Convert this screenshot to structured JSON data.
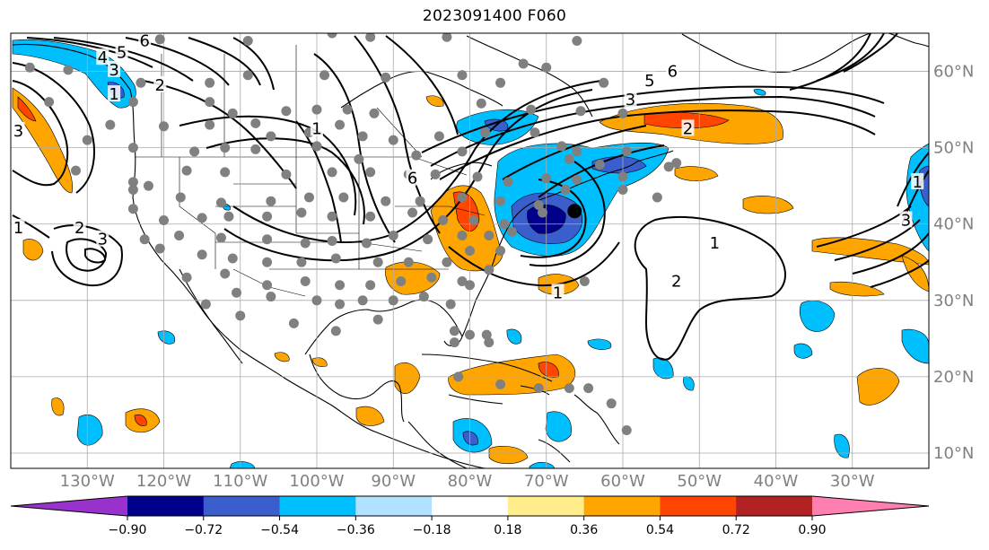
{
  "title": "2023091400 F060",
  "map": {
    "lon_range": [
      -140,
      -20
    ],
    "lat_range": [
      8,
      65
    ],
    "lon_ticks": [
      {
        "value": -130,
        "label": "130°W"
      },
      {
        "value": -120,
        "label": "120°W"
      },
      {
        "value": -110,
        "label": "110°W"
      },
      {
        "value": -100,
        "label": "100°W"
      },
      {
        "value": -90,
        "label": "90°W"
      },
      {
        "value": -80,
        "label": "80°W"
      },
      {
        "value": -70,
        "label": "70°W"
      },
      {
        "value": -60,
        "label": "60°W"
      },
      {
        "value": -50,
        "label": "50°W"
      },
      {
        "value": -40,
        "label": "40°W"
      },
      {
        "value": -30,
        "label": "30°W"
      }
    ],
    "lat_ticks": [
      {
        "value": 60,
        "label": "60°N"
      },
      {
        "value": 50,
        "label": "50°N"
      },
      {
        "value": 40,
        "label": "40°N"
      },
      {
        "value": 30,
        "label": "30°N"
      },
      {
        "value": 20,
        "label": "20°N"
      },
      {
        "value": 10,
        "label": "10°N"
      }
    ],
    "grid": true,
    "contour_labels": [
      {
        "text": "6",
        "lon": -122.5,
        "lat": 64.0
      },
      {
        "text": "5",
        "lon": -125.5,
        "lat": 62.5
      },
      {
        "text": "4",
        "lon": -128.0,
        "lat": 61.8
      },
      {
        "text": "3",
        "lon": -126.5,
        "lat": 60.2
      },
      {
        "text": "2",
        "lon": -120.5,
        "lat": 58.2
      },
      {
        "text": "1",
        "lon": -126.5,
        "lat": 57.0
      },
      {
        "text": "3",
        "lon": -139.0,
        "lat": 52.2
      },
      {
        "text": "1",
        "lon": -100.0,
        "lat": 52.5
      },
      {
        "text": "6",
        "lon": -87.5,
        "lat": 46.0
      },
      {
        "text": "2",
        "lon": -131.0,
        "lat": 39.5
      },
      {
        "text": "3",
        "lon": -128.0,
        "lat": 38.0
      },
      {
        "text": "1",
        "lon": -139.0,
        "lat": 39.5
      },
      {
        "text": "6",
        "lon": -53.5,
        "lat": 60.0
      },
      {
        "text": "5",
        "lon": -56.5,
        "lat": 58.8
      },
      {
        "text": "3",
        "lon": -59.0,
        "lat": 56.3
      },
      {
        "text": "2",
        "lon": -51.5,
        "lat": 52.5
      },
      {
        "text": "1",
        "lon": -48.0,
        "lat": 37.5
      },
      {
        "text": "2",
        "lon": -53.0,
        "lat": 32.5
      },
      {
        "text": "1",
        "lon": -68.5,
        "lat": 31.0
      },
      {
        "text": "3",
        "lon": -23.0,
        "lat": 40.5
      },
      {
        "text": "1",
        "lon": -21.5,
        "lat": 45.5
      }
    ],
    "station_color": "#808080",
    "stations": [
      [
        -120.5,
        64.2
      ],
      [
        -109,
        64
      ],
      [
        -98,
        65
      ],
      [
        -93,
        64.5
      ],
      [
        -83,
        64.5
      ],
      [
        -73,
        61
      ],
      [
        -66,
        64
      ],
      [
        -137.5,
        60.5
      ],
      [
        -132.5,
        60.2
      ],
      [
        -123,
        58.5
      ],
      [
        -114,
        58.5
      ],
      [
        -109,
        59.5
      ],
      [
        -99,
        59.5
      ],
      [
        -91,
        59.2
      ],
      [
        -81,
        59.5
      ],
      [
        -76,
        58.5
      ],
      [
        -70,
        60.5
      ],
      [
        -62.5,
        58.5
      ],
      [
        -135,
        56
      ],
      [
        -124,
        56
      ],
      [
        -114,
        56
      ],
      [
        -111,
        54.5
      ],
      [
        -104,
        54.8
      ],
      [
        -100,
        55
      ],
      [
        -96,
        55
      ],
      [
        -92.5,
        54.5
      ],
      [
        -78.5,
        55.8
      ],
      [
        -72,
        55
      ],
      [
        -60,
        54.5
      ],
      [
        -65.5,
        54.8
      ],
      [
        -127,
        53
      ],
      [
        -120,
        52.8
      ],
      [
        -114,
        53
      ],
      [
        -108,
        53.2
      ],
      [
        -106,
        51.5
      ],
      [
        -101,
        52
      ],
      [
        -97,
        53
      ],
      [
        -94,
        51.5
      ],
      [
        -90,
        51
      ],
      [
        -84,
        51.5
      ],
      [
        -78,
        52
      ],
      [
        -71.5,
        52
      ],
      [
        -130,
        51
      ],
      [
        -124,
        50
      ],
      [
        -116,
        49.5
      ],
      [
        -112,
        50
      ],
      [
        -108,
        49.8
      ],
      [
        -100,
        50.2
      ],
      [
        -94.5,
        48.5
      ],
      [
        -87,
        49
      ],
      [
        -81,
        49.5
      ],
      [
        -68,
        50.2
      ],
      [
        -66,
        49.5
      ],
      [
        -59.5,
        49.5
      ],
      [
        -53,
        48
      ],
      [
        -131.5,
        47
      ],
      [
        -124,
        45.5
      ],
      [
        -122,
        45
      ],
      [
        -117,
        47
      ],
      [
        -112,
        46.8
      ],
      [
        -104,
        46.5
      ],
      [
        -98,
        46.8
      ],
      [
        -93,
        46.8
      ],
      [
        -88,
        46.5
      ],
      [
        -84.5,
        46.5
      ],
      [
        -79,
        46.2
      ],
      [
        -75,
        45.5
      ],
      [
        -70,
        46
      ],
      [
        -66,
        45.8
      ],
      [
        -60,
        46.2
      ],
      [
        -54,
        47.5
      ],
      [
        -63,
        47.8
      ],
      [
        -67,
        48.5
      ],
      [
        -124,
        44.5
      ],
      [
        -117.8,
        43.5
      ],
      [
        -112.5,
        42.8
      ],
      [
        -106,
        43
      ],
      [
        -101,
        43.5
      ],
      [
        -96.5,
        43.5
      ],
      [
        -91,
        43
      ],
      [
        -86.5,
        43
      ],
      [
        -81,
        43.5
      ],
      [
        -76,
        43
      ],
      [
        -71,
        42.5
      ],
      [
        -67.5,
        44.5
      ],
      [
        -60,
        44.5
      ],
      [
        -55.5,
        43.5
      ],
      [
        -124,
        42
      ],
      [
        -120,
        40.5
      ],
      [
        -115,
        40.8
      ],
      [
        -111.5,
        41
      ],
      [
        -106.5,
        41
      ],
      [
        -102,
        41.5
      ],
      [
        -98,
        41
      ],
      [
        -93,
        41
      ],
      [
        -87.5,
        41.5
      ],
      [
        -83.5,
        40.5
      ],
      [
        -79.5,
        40.5
      ],
      [
        -75.5,
        40
      ],
      [
        -70.5,
        41.5
      ],
      [
        -122.5,
        38
      ],
      [
        -118,
        38.5
      ],
      [
        -112.5,
        38.2
      ],
      [
        -106.5,
        38
      ],
      [
        -101.5,
        37.5
      ],
      [
        -98,
        37.8
      ],
      [
        -93.5,
        37.5
      ],
      [
        -90,
        38.5
      ],
      [
        -85.5,
        38
      ],
      [
        -81,
        38.5
      ],
      [
        -77.5,
        38.5
      ],
      [
        -74.5,
        39
      ],
      [
        -120.5,
        36.8
      ],
      [
        -115,
        36
      ],
      [
        -111,
        35.5
      ],
      [
        -106.5,
        35
      ],
      [
        -102,
        35
      ],
      [
        -97.5,
        35.5
      ],
      [
        -92,
        35
      ],
      [
        -88,
        35
      ],
      [
        -83,
        35
      ],
      [
        -80,
        36.5
      ],
      [
        -76,
        36.5
      ],
      [
        -117,
        33
      ],
      [
        -112,
        33.5
      ],
      [
        -106.5,
        32
      ],
      [
        -101.5,
        32.5
      ],
      [
        -97,
        32
      ],
      [
        -93,
        32
      ],
      [
        -89,
        32.5
      ],
      [
        -85,
        33
      ],
      [
        -81,
        32.5
      ],
      [
        -77.5,
        34
      ],
      [
        -110.5,
        31
      ],
      [
        -106,
        30.5
      ],
      [
        -100,
        30
      ],
      [
        -97,
        29.5
      ],
      [
        -94,
        30
      ],
      [
        -90,
        30
      ],
      [
        -86,
        30.5
      ],
      [
        -82.5,
        29.5
      ],
      [
        -80,
        32
      ],
      [
        -65,
        32.5
      ],
      [
        -114.5,
        29.5
      ],
      [
        -110,
        28
      ],
      [
        -103,
        27
      ],
      [
        -97.5,
        26
      ],
      [
        -92,
        27.5
      ],
      [
        -82,
        26
      ],
      [
        -80,
        25.5
      ],
      [
        -82,
        24.5
      ],
      [
        -77.5,
        24.5
      ],
      [
        -77.8,
        25.5
      ],
      [
        -81.5,
        20
      ],
      [
        -76,
        19
      ],
      [
        -71,
        18.5
      ],
      [
        -67,
        18.5
      ],
      [
        -64.5,
        18.5
      ],
      [
        -61.5,
        16.5
      ],
      [
        -59.5,
        13
      ]
    ],
    "marker": {
      "lon": -66.3,
      "lat": 41.7,
      "color": "#000000"
    },
    "colors": {
      "land_line": "#000000",
      "grid_line": "#aaaaaa",
      "contour": "#000000"
    }
  },
  "colorbar": {
    "ticks": [
      "−0.90",
      "−0.72",
      "−0.54",
      "−0.36",
      "−0.18",
      "0.18",
      "0.36",
      "0.54",
      "0.72",
      "0.90"
    ],
    "colors": [
      "#9932cc",
      "#00008b",
      "#3a5fcd",
      "#00bfff",
      "#b0e2ff",
      "#ffffff",
      "#ffec8b",
      "#ffa500",
      "#ff4500",
      "#b22222",
      "#ff7fb0"
    ],
    "extend": "both"
  }
}
